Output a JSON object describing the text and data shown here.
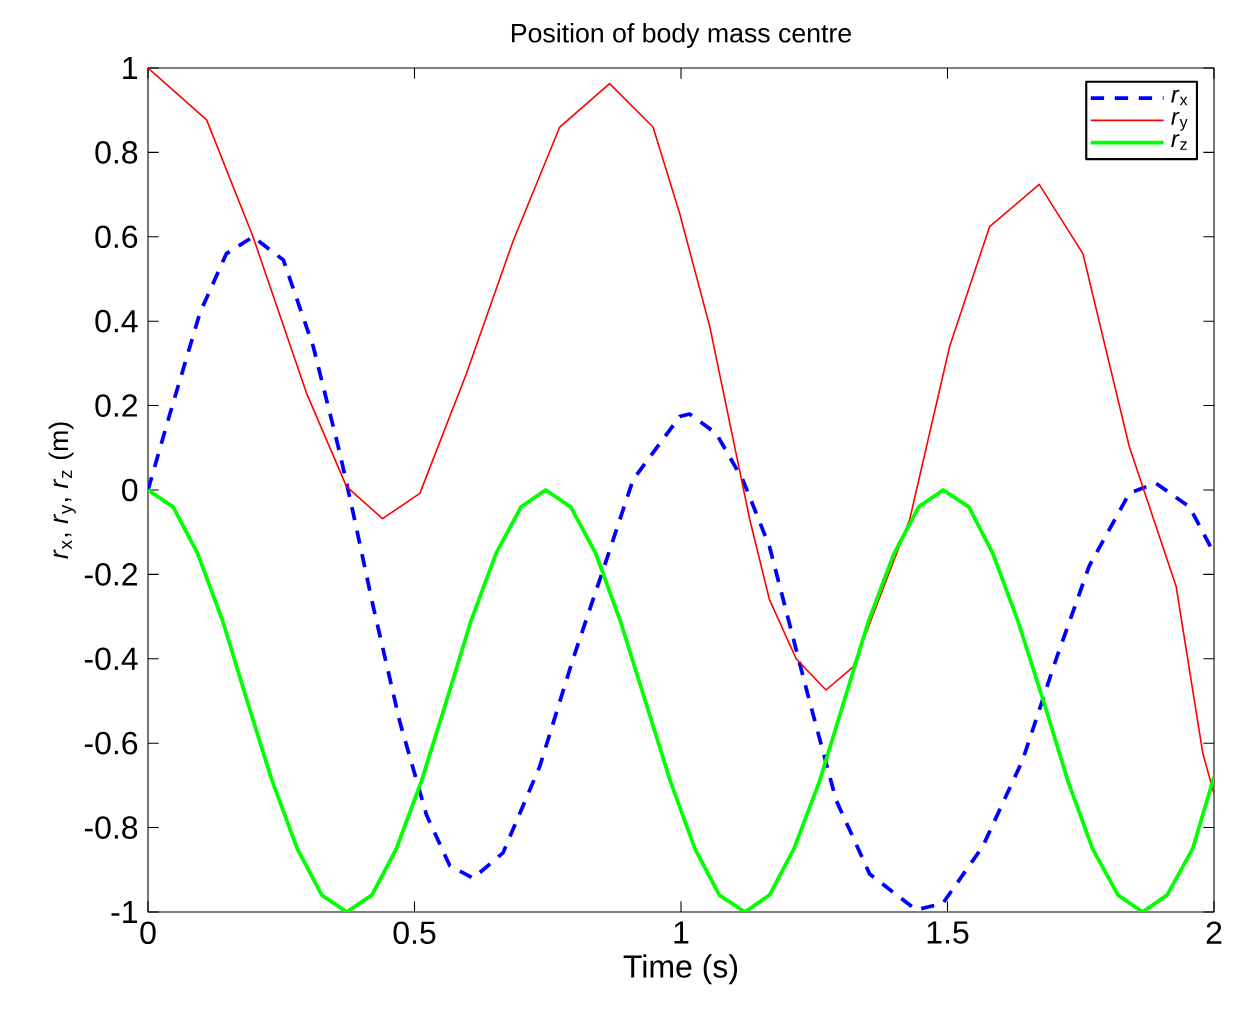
{
  "chart_data": {
    "type": "line",
    "title": "Position of body mass centre",
    "xlabel": "Time (s)",
    "ylabel": "*r*$_{x}$, *r*$_{y}$, *r*$_{z}$ (m)",
    "xlim": [
      0,
      2
    ],
    "ylim": [
      -1,
      1
    ],
    "xticks": [
      0,
      0.5,
      1,
      1.5,
      2
    ],
    "yticks": [
      -1,
      -0.8,
      -0.6,
      -0.4,
      -0.2,
      0,
      0.2,
      0.4,
      0.6,
      0.8,
      1
    ],
    "grid": false,
    "legend": "top right",
    "marker": "none",
    "series": [
      {
        "name": "*r*$_{x}$",
        "color": "#0000ff",
        "line_style": "dashed",
        "x": [
          0,
          0.041,
          0.0975,
          0.147,
          0.197,
          0.254,
          0.31,
          0.36,
          0.385,
          0.4225,
          0.4725,
          0.5225,
          0.566,
          0.61,
          0.666,
          0.735,
          0.7975,
          0.86,
          0.91,
          0.9975,
          1.016,
          1.066,
          1.116,
          1.166,
          1.241,
          1.291,
          1.354,
          1.441,
          1.491,
          1.566,
          1.641,
          1.704,
          1.766,
          1.841,
          1.891,
          1.954,
          2
        ],
        "values": [
          0,
          0.18,
          0.42,
          0.56,
          0.6,
          0.545,
          0.34,
          0.087,
          -0.055,
          -0.276,
          -0.55,
          -0.77,
          -0.89,
          -0.92,
          -0.86,
          -0.655,
          -0.4,
          -0.166,
          0.024,
          0.174,
          0.18,
          0.134,
          0.024,
          -0.134,
          -0.5,
          -0.735,
          -0.91,
          -0.995,
          -0.98,
          -0.845,
          -0.64,
          -0.4,
          -0.18,
          -0.008,
          0.016,
          -0.04,
          -0.15
        ]
      },
      {
        "name": "*r*$_{y}$",
        "color": "#ff0000",
        "line_style": "solid",
        "x": [
          0,
          0.11,
          0.197,
          0.2975,
          0.3725,
          0.44,
          0.51,
          0.5975,
          0.685,
          0.7725,
          0.866,
          0.9475,
          0.9975,
          1.054,
          1.129,
          1.166,
          1.216,
          1.272,
          1.3225,
          1.429,
          1.504,
          1.579,
          1.672,
          1.754,
          1.841,
          1.929,
          1.979,
          2
        ],
        "values": [
          1,
          0.877,
          0.6,
          0.229,
          0.008,
          -0.068,
          -0.008,
          0.276,
          0.59,
          0.86,
          0.963,
          0.86,
          0.655,
          0.387,
          -0.07,
          -0.26,
          -0.4,
          -0.474,
          -0.42,
          -0.07,
          0.34,
          0.624,
          0.724,
          0.56,
          0.103,
          -0.229,
          -0.624,
          -0.72
        ]
      },
      {
        "name": "*r*$_{z}$",
        "color": "#00ff00",
        "line_style": "solid",
        "x": [
          0,
          0.047,
          0.093,
          0.14,
          0.186,
          0.233,
          0.28,
          0.326,
          0.373,
          0.42,
          0.466,
          0.513,
          0.56,
          0.606,
          0.653,
          0.7,
          0.746,
          0.793,
          0.84,
          0.886,
          0.933,
          0.98,
          1.026,
          1.072,
          1.12,
          1.166,
          1.212,
          1.26,
          1.306,
          1.352,
          1.4,
          1.446,
          1.492,
          1.54,
          1.585,
          1.632,
          1.68,
          1.726,
          1.772,
          1.82,
          1.866,
          1.912,
          1.96,
          2
        ],
        "values": [
          0,
          -0.04,
          -0.15,
          -0.31,
          -0.5,
          -0.69,
          -0.85,
          -0.96,
          -1,
          -0.96,
          -0.85,
          -0.69,
          -0.5,
          -0.31,
          -0.15,
          -0.04,
          0,
          -0.04,
          -0.15,
          -0.31,
          -0.5,
          -0.69,
          -0.85,
          -0.96,
          -1,
          -0.96,
          -0.85,
          -0.69,
          -0.5,
          -0.31,
          -0.15,
          -0.04,
          0,
          -0.04,
          -0.15,
          -0.31,
          -0.5,
          -0.69,
          -0.85,
          -0.96,
          -1,
          -0.96,
          -0.85,
          -0.68
        ]
      }
    ]
  }
}
